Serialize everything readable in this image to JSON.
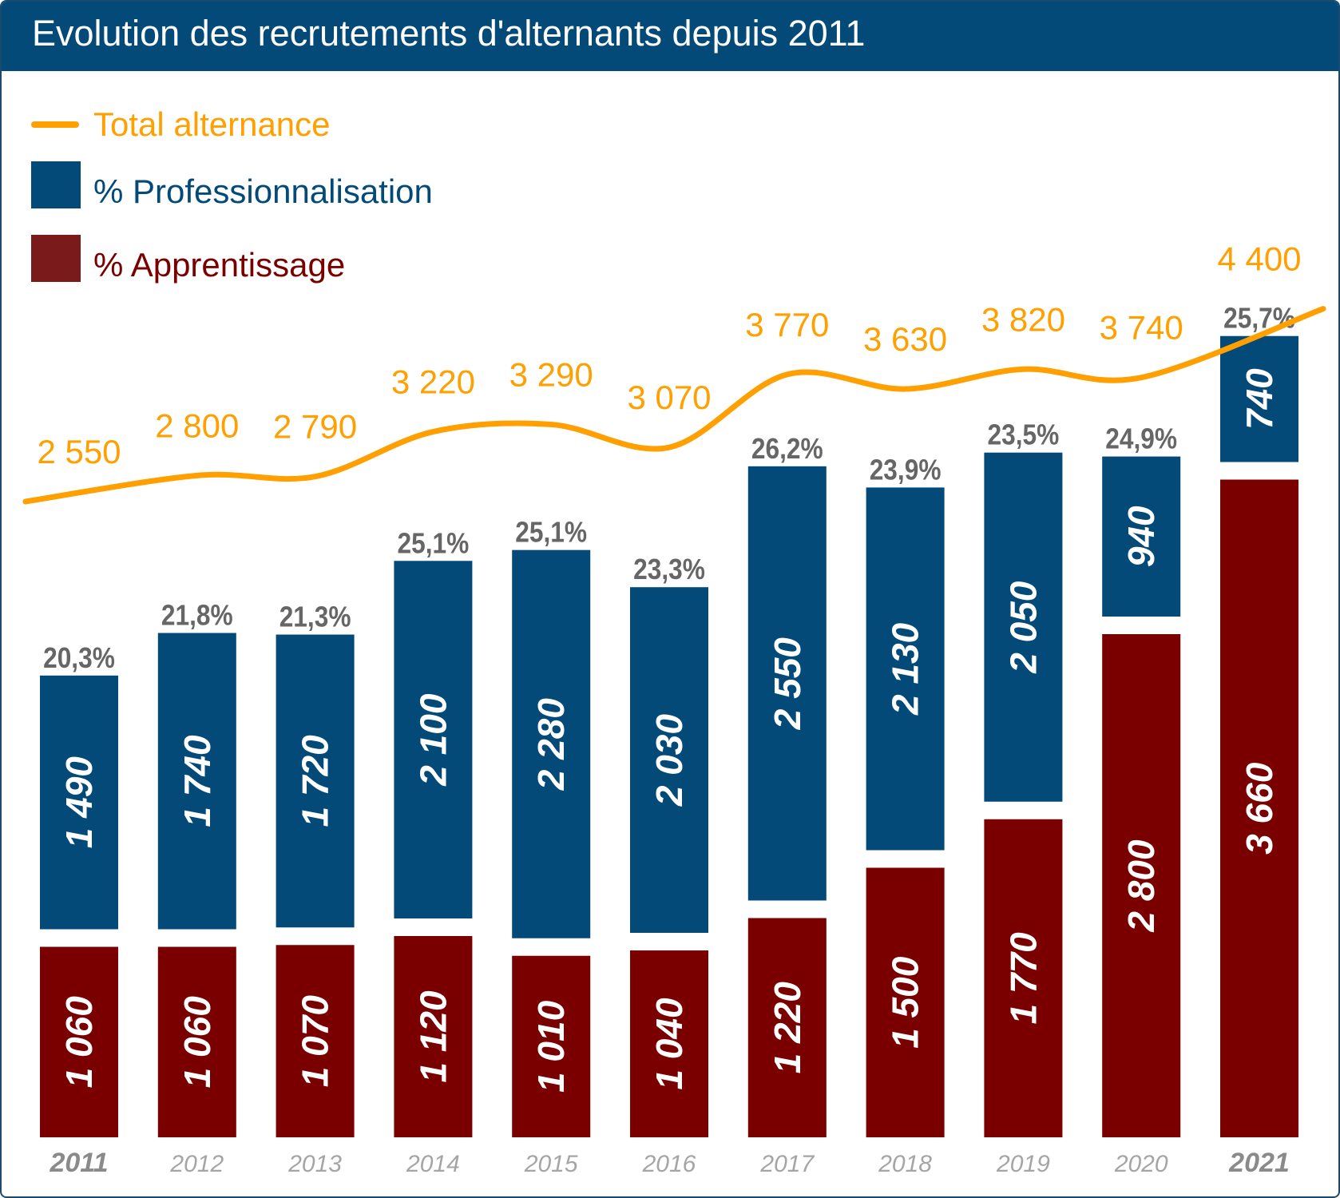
{
  "title": "Evolution des recrutements d'alternants depuis 2011",
  "colors": {
    "header": "#034a79",
    "professionnalisation": "#034a79",
    "apprentissage": "#7a0000",
    "total_line": "#ff9f00",
    "pct_label": "#666666",
    "year_label": "#9a9a9a"
  },
  "legend": {
    "total": "Total alternance",
    "pro": "% Professionnalisation",
    "app": "% Apprentissage"
  },
  "chart_data": {
    "type": "bar",
    "stacked": true,
    "categories": [
      "2011",
      "2012",
      "2013",
      "2014",
      "2015",
      "2016",
      "2017",
      "2018",
      "2019",
      "2020",
      "2021"
    ],
    "series": [
      {
        "name": "% Apprentissage",
        "values": [
          1060,
          1060,
          1070,
          1120,
          1010,
          1040,
          1220,
          1500,
          1770,
          2800,
          3660
        ],
        "labels": [
          "1 060",
          "1 060",
          "1 070",
          "1 120",
          "1 010",
          "1 040",
          "1 220",
          "1 500",
          "1 770",
          "2 800",
          "3 660"
        ]
      },
      {
        "name": "% Professionnalisation",
        "values": [
          1490,
          1740,
          1720,
          2100,
          2280,
          2030,
          2550,
          2130,
          2050,
          940,
          740
        ],
        "labels": [
          "1 490",
          "1 740",
          "1 720",
          "2 100",
          "2 280",
          "2 030",
          "2 550",
          "2 130",
          "2 050",
          "940",
          "740"
        ]
      }
    ],
    "line": {
      "name": "Total alternance",
      "values": [
        2550,
        2800,
        2790,
        3220,
        3290,
        3070,
        3770,
        3630,
        3820,
        3740,
        4400
      ],
      "labels": [
        "2 550",
        "2 800",
        "2 790",
        "3 220",
        "3 290",
        "3 070",
        "3 770",
        "3 630",
        "3 820",
        "3 740",
        "4 400"
      ]
    },
    "pct_labels": [
      "20,3%",
      "21,8%",
      "21,3%",
      "25,1%",
      "25,1%",
      "23,3%",
      "26,2%",
      "23,9%",
      "23,5%",
      "24,9%",
      "25,7%"
    ],
    "legend_position": "top-left",
    "grid": false,
    "highlighted_years": [
      "2011",
      "2021"
    ]
  }
}
